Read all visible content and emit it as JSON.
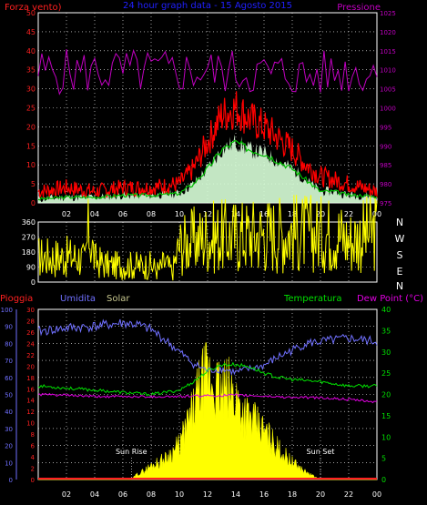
{
  "chart_data": [
    {
      "type": "line",
      "title": "24 hour graph data - 15 Agosto 2015",
      "left_axis_label": "Forza vento)",
      "right_axis_label": "Pressione",
      "colors": {
        "gust": "#ff0000",
        "avg_speed": "#00c000",
        "wind_fill": "#d8ffd8",
        "pressure": "#c000c0",
        "left_ticks": "#ff2020",
        "right_ticks": "#c000c0",
        "title": "#2020ff"
      },
      "ylim_left": [
        0,
        50
      ],
      "yticks_left": [
        "0",
        "5",
        "10",
        "15",
        "20",
        "25",
        "30",
        "35",
        "40",
        "45",
        "50"
      ],
      "ylim_right": [
        975,
        1025
      ],
      "yticks_right": [
        "975",
        "980",
        "985",
        "990",
        "995",
        "1000",
        "1005",
        "1010",
        "1015",
        "1020",
        "1025"
      ],
      "x_ticks": [
        "02",
        "04",
        "06",
        "08",
        "10",
        "12",
        "14",
        "16",
        "18",
        "20",
        "22",
        "00"
      ],
      "grid": true,
      "series": [
        {
          "key": "gust",
          "x": [
            0,
            2,
            4,
            6,
            8,
            10,
            11,
            12,
            13,
            14,
            15,
            16,
            17,
            18,
            19,
            20,
            21,
            22,
            23,
            24
          ],
          "values": [
            3,
            4,
            3,
            4,
            4,
            5,
            9,
            16,
            23,
            25,
            22,
            20,
            17,
            14,
            10,
            7,
            6,
            5,
            4,
            3
          ]
        },
        {
          "key": "avg_speed",
          "x": [
            0,
            2,
            4,
            6,
            8,
            10,
            11,
            12,
            13,
            14,
            15,
            16,
            17,
            18,
            19,
            20,
            21,
            22,
            23,
            24
          ],
          "values": [
            1,
            1.5,
            1.5,
            2,
            2,
            2.5,
            5,
            9,
            14,
            16,
            14,
            13,
            11,
            9,
            6,
            3,
            3,
            2,
            2,
            1.5
          ]
        },
        {
          "key": "pressure",
          "x": [
            0,
            2,
            4,
            6,
            8,
            10,
            12,
            14,
            16,
            18,
            19,
            20,
            22,
            24
          ],
          "values": [
            1009.5,
            1009.5,
            1009.5,
            1009.5,
            1009.5,
            1009.5,
            1009.5,
            1009.5,
            1009,
            1009,
            1008,
            1009,
            1009.5,
            1009.5
          ]
        }
      ]
    },
    {
      "type": "line",
      "title": "",
      "ylim": [
        0,
        360
      ],
      "yticks": [
        "0",
        "90",
        "180",
        "270",
        "360"
      ],
      "right_labels": [
        "N",
        "W",
        "S",
        "E",
        "N"
      ],
      "colors": {
        "direction": "#ffff00",
        "ticks": "#ffffff"
      },
      "x_ticks": [
        "02",
        "04",
        "06",
        "08",
        "10",
        "12",
        "14",
        "16",
        "18",
        "20",
        "22",
        "00"
      ],
      "grid": true,
      "series": [
        {
          "key": "direction",
          "x": [
            0,
            3,
            3.3,
            3.6,
            4,
            5,
            6,
            7,
            8,
            8.5,
            9,
            9.5,
            10,
            11,
            12,
            14,
            16,
            18,
            20,
            21,
            22,
            23,
            24
          ],
          "values": [
            150,
            150,
            120,
            320,
            130,
            100,
            100,
            100,
            100,
            70,
            120,
            60,
            220,
            250,
            270,
            280,
            290,
            300,
            290,
            300,
            250,
            280,
            300
          ]
        }
      ]
    },
    {
      "type": "line",
      "labels": {
        "rain": "Pioggia",
        "humidity": "Umidita",
        "solar": "Solar",
        "temperature": "Temperatura",
        "dew_point": "Dew Point (°C)",
        "sunrise": "Sun Rise",
        "sunset": "Sun Set"
      },
      "colors": {
        "rain": "#ff2020",
        "humidity": "#7070ff",
        "solar": "#ffff00",
        "temperature": "#00e000",
        "dew_point": "#e000e0",
        "solar_label": "#c8c890",
        "annotation": "#ffffff"
      },
      "yticks_humidity": [
        "0",
        "10",
        "20",
        "30",
        "40",
        "50",
        "60",
        "70",
        "80",
        "90",
        "100"
      ],
      "yticks_rain": [
        "0",
        "2",
        "4",
        "6",
        "8",
        "10",
        "12",
        "14",
        "16",
        "18",
        "20",
        "22",
        "24",
        "26",
        "28",
        "30"
      ],
      "yticks_temperature": [
        "0",
        "5",
        "10",
        "15",
        "20",
        "25",
        "30",
        "35",
        "40"
      ],
      "ylim_humidity": [
        0,
        100
      ],
      "ylim_temperature": [
        0,
        40
      ],
      "x_ticks": [
        "02",
        "04",
        "06",
        "08",
        "10",
        "12",
        "14",
        "16",
        "18",
        "20",
        "22",
        "00"
      ],
      "grid": true,
      "sunrise_hour": 6.6,
      "sunset_hour": 20.0,
      "series": [
        {
          "key": "humidity",
          "x": [
            0,
            1,
            2,
            4,
            6,
            7,
            8,
            9,
            10,
            11,
            12,
            13,
            14,
            15,
            16,
            17,
            18,
            19,
            20,
            21,
            22,
            23,
            24
          ],
          "values": [
            87,
            88,
            89,
            90,
            92,
            91,
            88,
            82,
            75,
            68,
            64,
            65,
            63,
            65,
            67,
            72,
            76,
            80,
            81,
            82,
            83,
            82,
            81
          ]
        },
        {
          "key": "temperature",
          "x": [
            0,
            2,
            4,
            6,
            8,
            10,
            11,
            12,
            13,
            14,
            15,
            16,
            17,
            18,
            20,
            22,
            24
          ],
          "values": [
            22,
            21.5,
            21,
            20.5,
            20,
            21,
            23,
            25.5,
            27,
            27,
            26.5,
            25,
            24,
            23.5,
            23,
            22,
            22
          ]
        },
        {
          "key": "dew_point",
          "x": [
            0,
            2,
            4,
            6,
            8,
            10,
            12,
            14,
            16,
            18,
            20,
            22,
            24
          ],
          "values": [
            20,
            19.8,
            19.5,
            19.5,
            19.5,
            19.5,
            19.7,
            19.8,
            19.6,
            19.3,
            19.2,
            18.8,
            18.2
          ]
        },
        {
          "key": "solar",
          "x": [
            0,
            6.6,
            7,
            7.5,
            8,
            9,
            10,
            10.5,
            11,
            11.5,
            12,
            12.5,
            13,
            13.5,
            14,
            14.5,
            15,
            16,
            17,
            18,
            19,
            20,
            24
          ],
          "values": [
            0,
            0,
            3,
            5,
            8,
            12,
            20,
            30,
            40,
            55,
            60,
            55,
            50,
            52,
            48,
            40,
            35,
            28,
            18,
            10,
            4,
            0,
            0
          ]
        },
        {
          "key": "rain",
          "x": [
            0,
            24
          ],
          "values": [
            0,
            0
          ]
        }
      ]
    }
  ]
}
